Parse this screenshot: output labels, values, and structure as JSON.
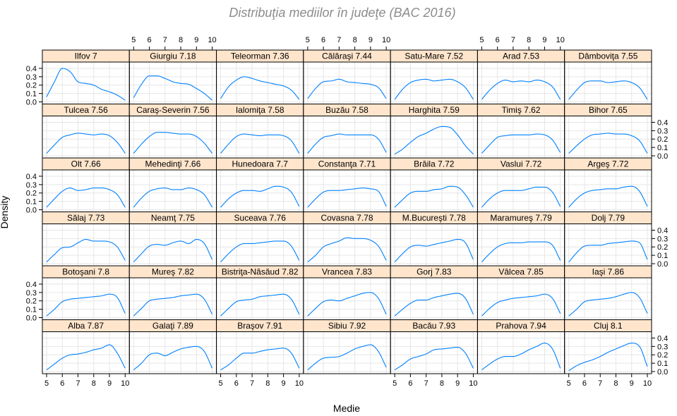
{
  "chart_data": {
    "type": "line",
    "title": "Distribuţia mediilor în judeţe (BAC 2016)",
    "xlabel": "Medie",
    "ylabel": "Density",
    "xlim": [
      5,
      10
    ],
    "ylim": [
      0,
      0.45
    ],
    "x_ticks": [
      5,
      6,
      7,
      8,
      9,
      10
    ],
    "y_ticks": [
      0.0,
      0.1,
      0.2,
      0.3,
      0.4
    ],
    "y_tick_labels": [
      "0.0",
      "0.1",
      "0.2",
      "0.3",
      "0.4"
    ],
    "line_color": "#0080ff",
    "strip_color": "#ffe5cc",
    "grid": true,
    "layout": {
      "columns": 7,
      "rows": 6
    },
    "x_sample": [
      5.0,
      5.5,
      6.0,
      6.5,
      7.0,
      7.5,
      8.0,
      8.5,
      9.0,
      9.5,
      10.0
    ],
    "panels": [
      {
        "label": "Alba 7.87",
        "y": [
          0.02,
          0.09,
          0.16,
          0.2,
          0.21,
          0.23,
          0.26,
          0.28,
          0.32,
          0.22,
          0.04
        ]
      },
      {
        "label": "Galaţi 7.89",
        "y": [
          0.02,
          0.1,
          0.2,
          0.22,
          0.19,
          0.23,
          0.27,
          0.29,
          0.3,
          0.24,
          0.04
        ]
      },
      {
        "label": "Braşov 7.91",
        "y": [
          0.02,
          0.08,
          0.16,
          0.22,
          0.22,
          0.24,
          0.26,
          0.27,
          0.28,
          0.22,
          0.04
        ]
      },
      {
        "label": "Sibiu 7.92",
        "y": [
          0.02,
          0.1,
          0.16,
          0.17,
          0.18,
          0.22,
          0.27,
          0.3,
          0.32,
          0.24,
          0.05
        ]
      },
      {
        "label": "Bacău 7.93",
        "y": [
          0.02,
          0.08,
          0.15,
          0.18,
          0.21,
          0.26,
          0.27,
          0.28,
          0.29,
          0.22,
          0.04
        ]
      },
      {
        "label": "Prahova 7.94",
        "y": [
          0.02,
          0.09,
          0.15,
          0.18,
          0.18,
          0.21,
          0.26,
          0.3,
          0.34,
          0.27,
          0.04
        ]
      },
      {
        "label": "Cluj 8.1",
        "y": [
          0.01,
          0.07,
          0.11,
          0.14,
          0.18,
          0.23,
          0.27,
          0.31,
          0.34,
          0.3,
          0.06
        ]
      },
      {
        "label": "Botoşani 7.8",
        "y": [
          0.02,
          0.1,
          0.19,
          0.22,
          0.23,
          0.24,
          0.25,
          0.26,
          0.28,
          0.24,
          0.05
        ]
      },
      {
        "label": "Mureş 7.82",
        "y": [
          0.02,
          0.11,
          0.2,
          0.22,
          0.23,
          0.24,
          0.26,
          0.27,
          0.28,
          0.22,
          0.04
        ]
      },
      {
        "label": "Bistriţa-Năsăud 7.82",
        "y": [
          0.02,
          0.11,
          0.19,
          0.21,
          0.22,
          0.25,
          0.26,
          0.27,
          0.28,
          0.22,
          0.04
        ]
      },
      {
        "label": "Vrancea 7.83",
        "y": [
          0.02,
          0.11,
          0.19,
          0.21,
          0.2,
          0.23,
          0.26,
          0.29,
          0.3,
          0.23,
          0.04
        ]
      },
      {
        "label": "Gorj 7.83",
        "y": [
          0.02,
          0.1,
          0.17,
          0.21,
          0.21,
          0.24,
          0.26,
          0.28,
          0.29,
          0.23,
          0.04
        ]
      },
      {
        "label": "Vâlcea 7.85",
        "y": [
          0.02,
          0.11,
          0.18,
          0.21,
          0.23,
          0.24,
          0.25,
          0.26,
          0.28,
          0.23,
          0.05
        ]
      },
      {
        "label": "Iaşi 7.86",
        "y": [
          0.02,
          0.1,
          0.19,
          0.21,
          0.22,
          0.23,
          0.25,
          0.28,
          0.3,
          0.24,
          0.05
        ]
      },
      {
        "label": "Sălaj 7.73",
        "y": [
          0.02,
          0.11,
          0.19,
          0.2,
          0.25,
          0.29,
          0.27,
          0.27,
          0.26,
          0.2,
          0.04
        ]
      },
      {
        "label": "Neamţ 7.75",
        "y": [
          0.02,
          0.12,
          0.21,
          0.23,
          0.22,
          0.25,
          0.27,
          0.24,
          0.29,
          0.24,
          0.05
        ]
      },
      {
        "label": "Suceava 7.76",
        "y": [
          0.02,
          0.12,
          0.2,
          0.24,
          0.24,
          0.25,
          0.26,
          0.27,
          0.27,
          0.21,
          0.04
        ]
      },
      {
        "label": "Covasna 7.78",
        "y": [
          0.02,
          0.1,
          0.2,
          0.24,
          0.27,
          0.31,
          0.3,
          0.3,
          0.28,
          0.21,
          0.04
        ]
      },
      {
        "label": "M.Bucureşti 7.78",
        "y": [
          0.02,
          0.12,
          0.2,
          0.22,
          0.21,
          0.23,
          0.25,
          0.27,
          0.29,
          0.25,
          0.05
        ]
      },
      {
        "label": "Maramureş 7.79",
        "y": [
          0.02,
          0.12,
          0.2,
          0.24,
          0.25,
          0.25,
          0.26,
          0.26,
          0.26,
          0.22,
          0.04
        ]
      },
      {
        "label": "Dolj 7.79",
        "y": [
          0.02,
          0.13,
          0.21,
          0.22,
          0.22,
          0.24,
          0.25,
          0.26,
          0.27,
          0.25,
          0.05
        ]
      },
      {
        "label": "Olt 7.66",
        "y": [
          0.03,
          0.13,
          0.22,
          0.26,
          0.23,
          0.24,
          0.26,
          0.26,
          0.24,
          0.18,
          0.03
        ]
      },
      {
        "label": "Mehedinţi 7.66",
        "y": [
          0.03,
          0.14,
          0.22,
          0.25,
          0.26,
          0.24,
          0.24,
          0.26,
          0.24,
          0.18,
          0.03
        ]
      },
      {
        "label": "Hunedoara 7.7",
        "y": [
          0.03,
          0.13,
          0.2,
          0.23,
          0.23,
          0.22,
          0.25,
          0.28,
          0.27,
          0.21,
          0.04
        ]
      },
      {
        "label": "Constanţa 7.71",
        "y": [
          0.03,
          0.13,
          0.21,
          0.23,
          0.23,
          0.24,
          0.25,
          0.26,
          0.25,
          0.22,
          0.04
        ]
      },
      {
        "label": "Brăila 7.72",
        "y": [
          0.03,
          0.12,
          0.2,
          0.22,
          0.22,
          0.24,
          0.25,
          0.28,
          0.27,
          0.18,
          0.03
        ]
      },
      {
        "label": "Vaslui 7.72",
        "y": [
          0.03,
          0.13,
          0.2,
          0.23,
          0.23,
          0.23,
          0.25,
          0.27,
          0.27,
          0.21,
          0.04
        ]
      },
      {
        "label": "Argeş 7.72",
        "y": [
          0.03,
          0.13,
          0.2,
          0.23,
          0.24,
          0.25,
          0.25,
          0.27,
          0.28,
          0.22,
          0.04
        ]
      },
      {
        "label": "Tulcea 7.56",
        "y": [
          0.03,
          0.13,
          0.22,
          0.25,
          0.27,
          0.26,
          0.25,
          0.26,
          0.24,
          0.16,
          0.03
        ]
      },
      {
        "label": "Caraş-Severin 7.56",
        "y": [
          0.03,
          0.14,
          0.23,
          0.28,
          0.28,
          0.27,
          0.26,
          0.26,
          0.23,
          0.15,
          0.03
        ]
      },
      {
        "label": "Ialomiţa 7.58",
        "y": [
          0.03,
          0.14,
          0.23,
          0.26,
          0.25,
          0.24,
          0.25,
          0.25,
          0.24,
          0.18,
          0.03
        ]
      },
      {
        "label": "Buzău 7.58",
        "y": [
          0.03,
          0.14,
          0.22,
          0.24,
          0.26,
          0.25,
          0.25,
          0.25,
          0.25,
          0.2,
          0.04
        ]
      },
      {
        "label": "Harghita 7.59",
        "y": [
          0.02,
          0.08,
          0.16,
          0.23,
          0.27,
          0.32,
          0.35,
          0.34,
          0.25,
          0.12,
          0.02
        ]
      },
      {
        "label": "Timiş 7.62",
        "y": [
          0.03,
          0.13,
          0.22,
          0.24,
          0.25,
          0.25,
          0.25,
          0.26,
          0.25,
          0.19,
          0.04
        ]
      },
      {
        "label": "Bihor 7.65",
        "y": [
          0.03,
          0.12,
          0.2,
          0.25,
          0.26,
          0.27,
          0.26,
          0.26,
          0.24,
          0.18,
          0.03
        ]
      },
      {
        "label": "Ilfov 7",
        "y": [
          0.06,
          0.24,
          0.4,
          0.36,
          0.24,
          0.22,
          0.2,
          0.15,
          0.12,
          0.08,
          0.02
        ]
      },
      {
        "label": "Giurgiu 7.18",
        "y": [
          0.05,
          0.21,
          0.31,
          0.31,
          0.28,
          0.24,
          0.22,
          0.21,
          0.16,
          0.1,
          0.02
        ]
      },
      {
        "label": "Teleorman 7.36",
        "y": [
          0.04,
          0.18,
          0.26,
          0.3,
          0.28,
          0.25,
          0.23,
          0.21,
          0.19,
          0.14,
          0.03
        ]
      },
      {
        "label": "Călăraşi 7.44",
        "y": [
          0.04,
          0.16,
          0.24,
          0.25,
          0.27,
          0.24,
          0.23,
          0.22,
          0.21,
          0.17,
          0.04
        ]
      },
      {
        "label": "Satu-Mare 7.52",
        "y": [
          0.03,
          0.15,
          0.23,
          0.26,
          0.27,
          0.25,
          0.26,
          0.27,
          0.24,
          0.17,
          0.03
        ]
      },
      {
        "label": "Arad 7.53",
        "y": [
          0.03,
          0.14,
          0.22,
          0.26,
          0.24,
          0.25,
          0.24,
          0.26,
          0.24,
          0.18,
          0.03
        ]
      },
      {
        "label": "Dâmboviţa 7.55",
        "y": [
          0.03,
          0.14,
          0.23,
          0.25,
          0.25,
          0.23,
          0.24,
          0.25,
          0.23,
          0.17,
          0.03
        ]
      }
    ]
  }
}
